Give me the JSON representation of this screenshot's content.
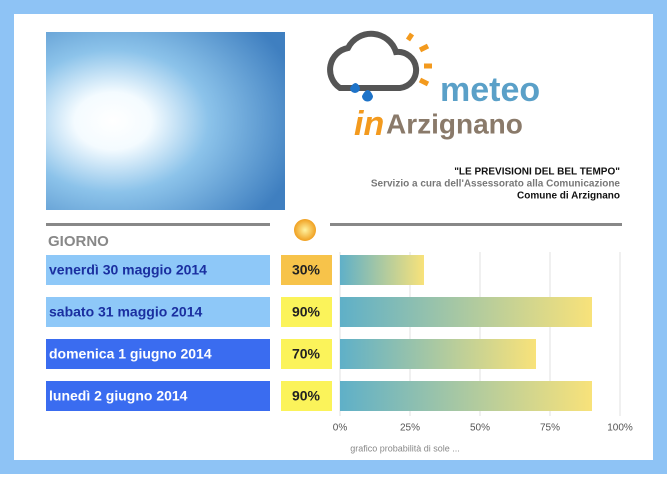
{
  "header": {
    "logo_meteo": "meteo",
    "logo_in": "in",
    "logo_town": "Arzignano",
    "tagline": "\"LE PREVISIONI DEL BEL TEMPO\"",
    "service": "Servizio a cura dell'Assessorato alla Comunicazione",
    "comune": "Comune di Arzignano"
  },
  "chart_data": {
    "type": "bar",
    "orientation": "horizontal",
    "column_title": "GIORNO",
    "categories": [
      "venerdì 30 maggio 2014",
      "sabato 31 maggio 2014",
      "domenica 1 giugno 2014",
      "lunedì 2 giugno 2014"
    ],
    "values": [
      30,
      90,
      70,
      90
    ],
    "value_labels": [
      "30%",
      "90%",
      "70%",
      "90%"
    ],
    "label_colors": [
      "#8ec8f8",
      "#8ec8f8",
      "#3a6cf0",
      "#3a6cf0"
    ],
    "label_text_colors": [
      "#1a2fa0",
      "#1a2fa0",
      "#ffffff",
      "#ffffff"
    ],
    "value_label_colors": [
      "#f7c34a",
      "#fbf35a",
      "#fbf35a",
      "#fbf35a"
    ],
    "color_start": "#5fb0c8",
    "color_end": "#f8e27a",
    "xlim": [
      0,
      100
    ],
    "xticks": [
      {
        "value": 0,
        "label": "0%"
      },
      {
        "value": 25,
        "label": "25%"
      },
      {
        "value": 50,
        "label": "50%"
      },
      {
        "value": 75,
        "label": "75%"
      },
      {
        "value": 100,
        "label": "100%"
      }
    ],
    "grid": true,
    "caption": "grafico probabilità di sole ..."
  }
}
